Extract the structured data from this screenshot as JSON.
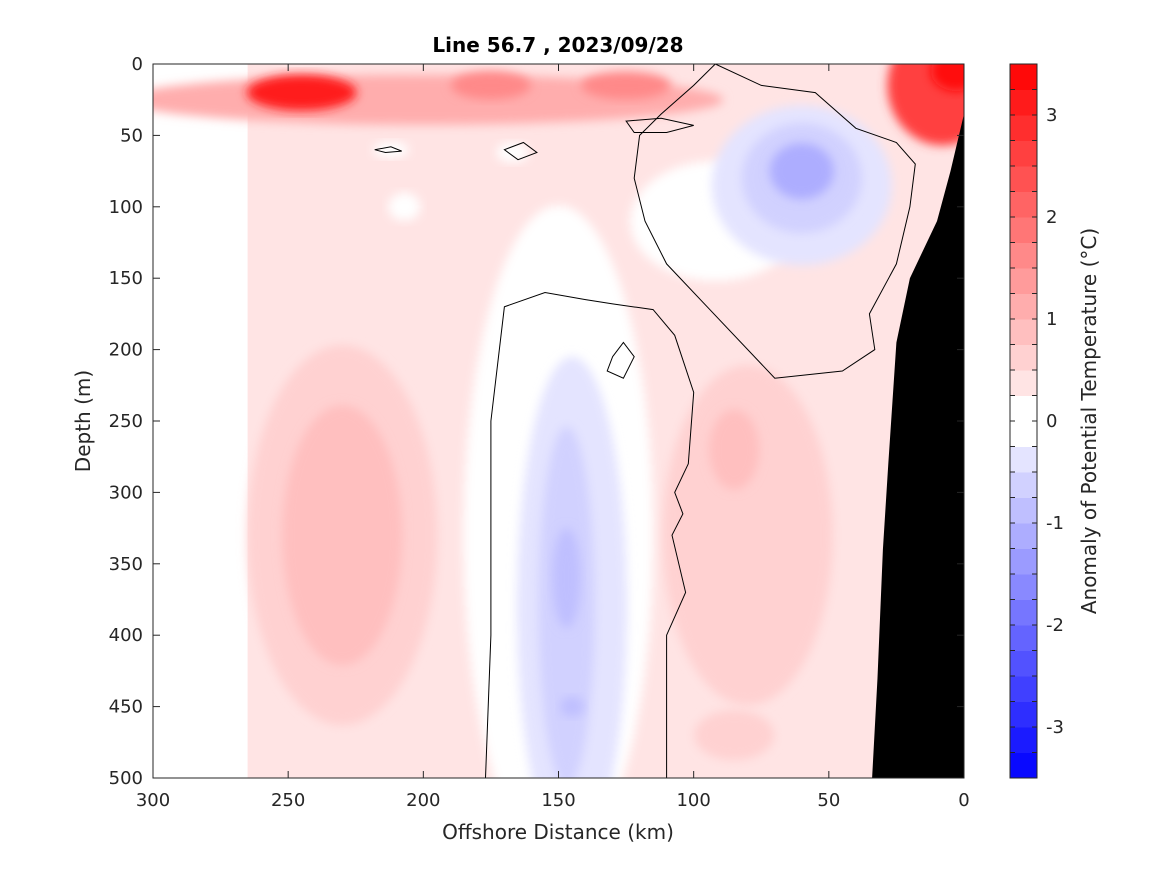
{
  "chart_data": {
    "type": "heatmap",
    "subtype": "filled contour section",
    "title": "Line 56.7 , 2023/09/28",
    "xlabel": "Offshore Distance (km)",
    "ylabel": "Depth (m)",
    "xlim": [
      300,
      0
    ],
    "ylim": [
      0,
      500
    ],
    "x_direction": "reversed",
    "y_direction": "reversed (depth increases downward)",
    "x_ticks": [
      "300",
      "250",
      "200",
      "150",
      "100",
      "50",
      "0"
    ],
    "y_ticks": [
      "0",
      "50",
      "100",
      "150",
      "200",
      "250",
      "300",
      "350",
      "400",
      "450",
      "500"
    ],
    "data_extent_x": [
      265,
      0
    ],
    "colorbar": {
      "label": "Anomaly of Potential Temperature (°C)",
      "range": [
        -3.5,
        3.5
      ],
      "step": 0.25,
      "ticks": [
        "3",
        "2",
        "1",
        "0",
        "-1",
        "-2",
        "-3"
      ],
      "cmap": "blue-white-red diverging"
    },
    "zero_contour": "black line",
    "bathymetry": {
      "color": "#000000",
      "seafloor": [
        [
          0,
          35
        ],
        [
          5,
          75
        ],
        [
          10,
          110
        ],
        [
          20,
          150
        ],
        [
          25,
          195
        ],
        [
          28,
          280
        ],
        [
          30,
          340
        ],
        [
          32,
          430
        ],
        [
          34,
          500
        ]
      ]
    },
    "grid": false,
    "features": [
      {
        "x": 245,
        "depth": 20,
        "anomaly": 3.0
      },
      {
        "x": 5,
        "depth": 5,
        "anomaly": 3.25
      },
      {
        "x": 125,
        "depth": 15,
        "anomaly": 1.5
      },
      {
        "x": 175,
        "depth": 12,
        "anomaly": 1.25
      },
      {
        "x": 60,
        "depth": 75,
        "anomaly": -1.0
      },
      {
        "x": 147,
        "depth": 360,
        "anomaly": -0.8
      },
      {
        "x": 145,
        "depth": 450,
        "anomaly": -0.8
      },
      {
        "x": 230,
        "depth": 300,
        "anomaly": 0.7
      },
      {
        "x": 85,
        "depth": 270,
        "anomaly": 0.6
      }
    ]
  }
}
